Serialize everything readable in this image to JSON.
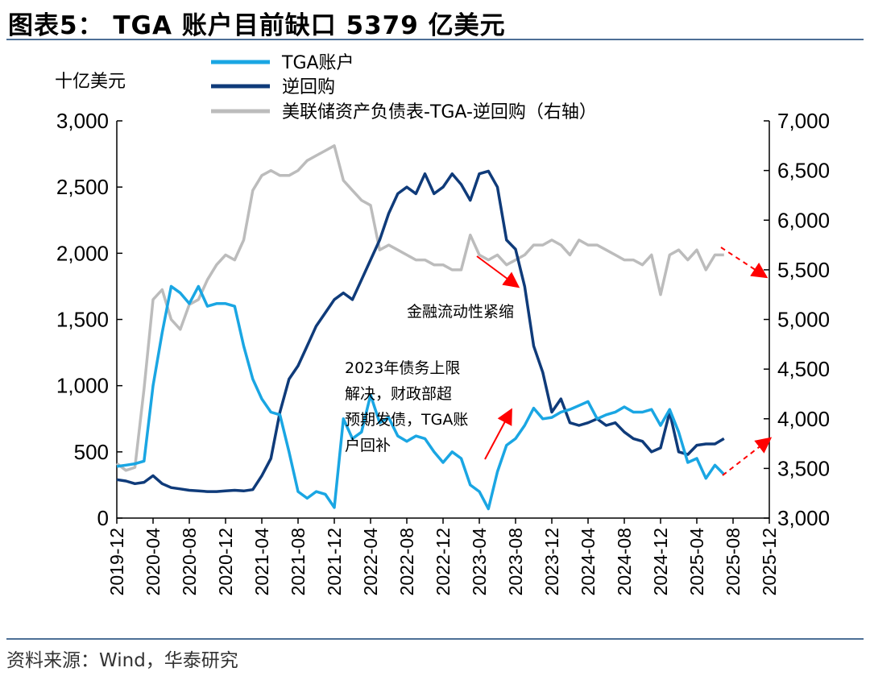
{
  "header": {
    "title": "图表5： TGA 账户目前缺口 5379 亿美元"
  },
  "footer": {
    "source": "资料来源：Wind，华泰研究"
  },
  "chart_data": {
    "type": "line",
    "left_unit": "十亿美元",
    "x_ticks": [
      "2019-12",
      "2020-04",
      "2020-08",
      "2020-12",
      "2021-04",
      "2021-08",
      "2021-12",
      "2022-04",
      "2022-08",
      "2022-12",
      "2023-04",
      "2023-08",
      "2023-12",
      "2024-04",
      "2024-08",
      "2024-12",
      "2025-04",
      "2025-08",
      "2025-12"
    ],
    "y_left": {
      "min": 0,
      "max": 3000,
      "ticks": [
        "0",
        "500",
        "1,000",
        "1,500",
        "2,000",
        "2,500",
        "3,000"
      ]
    },
    "y_right": {
      "min": 3000,
      "max": 7000,
      "ticks": [
        "3,000",
        "3,500",
        "4,000",
        "4,500",
        "5,000",
        "5,500",
        "6,000",
        "6,500",
        "7,000"
      ]
    },
    "grid": false,
    "legend_position": "top",
    "series": [
      {
        "name": "TGA账户",
        "axis": "left",
        "color": "#1aa6e3",
        "points": [
          [
            "2019-12",
            390
          ],
          [
            "2020-01",
            400
          ],
          [
            "2020-02",
            410
          ],
          [
            "2020-03",
            430
          ],
          [
            "2020-04",
            1000
          ],
          [
            "2020-05",
            1400
          ],
          [
            "2020-06",
            1750
          ],
          [
            "2020-07",
            1700
          ],
          [
            "2020-08",
            1620
          ],
          [
            "2020-09",
            1750
          ],
          [
            "2020-10",
            1600
          ],
          [
            "2020-11",
            1620
          ],
          [
            "2020-12",
            1620
          ],
          [
            "2021-01",
            1600
          ],
          [
            "2021-02",
            1300
          ],
          [
            "2021-03",
            1050
          ],
          [
            "2021-04",
            900
          ],
          [
            "2021-05",
            800
          ],
          [
            "2021-06",
            780
          ],
          [
            "2021-07",
            500
          ],
          [
            "2021-08",
            200
          ],
          [
            "2021-09",
            150
          ],
          [
            "2021-10",
            200
          ],
          [
            "2021-11",
            180
          ],
          [
            "2021-12",
            80
          ],
          [
            "2022-01",
            750
          ],
          [
            "2022-02",
            600
          ],
          [
            "2022-03",
            650
          ],
          [
            "2022-04",
            930
          ],
          [
            "2022-05",
            720
          ],
          [
            "2022-06",
            760
          ],
          [
            "2022-07",
            620
          ],
          [
            "2022-08",
            580
          ],
          [
            "2022-09",
            620
          ],
          [
            "2022-10",
            600
          ],
          [
            "2022-11",
            500
          ],
          [
            "2022-12",
            420
          ],
          [
            "2023-01",
            500
          ],
          [
            "2023-02",
            450
          ],
          [
            "2023-03",
            250
          ],
          [
            "2023-04",
            200
          ],
          [
            "2023-05",
            70
          ],
          [
            "2023-06",
            350
          ],
          [
            "2023-07",
            550
          ],
          [
            "2023-08",
            600
          ],
          [
            "2023-09",
            700
          ],
          [
            "2023-10",
            830
          ],
          [
            "2023-11",
            750
          ],
          [
            "2023-12",
            760
          ],
          [
            "2024-01",
            800
          ],
          [
            "2024-02",
            820
          ],
          [
            "2024-03",
            850
          ],
          [
            "2024-04",
            880
          ],
          [
            "2024-05",
            750
          ],
          [
            "2024-06",
            780
          ],
          [
            "2024-07",
            800
          ],
          [
            "2024-08",
            840
          ],
          [
            "2024-09",
            800
          ],
          [
            "2024-10",
            800
          ],
          [
            "2024-11",
            820
          ],
          [
            "2024-12",
            700
          ],
          [
            "2025-01",
            820
          ],
          [
            "2025-02",
            650
          ],
          [
            "2025-03",
            420
          ],
          [
            "2025-04",
            450
          ],
          [
            "2025-05",
            300
          ],
          [
            "2025-06",
            400
          ],
          [
            "2025-07",
            330
          ]
        ]
      },
      {
        "name": "逆回购",
        "axis": "left",
        "color": "#0f3b7a",
        "points": [
          [
            "2019-12",
            290
          ],
          [
            "2020-01",
            280
          ],
          [
            "2020-02",
            260
          ],
          [
            "2020-03",
            270
          ],
          [
            "2020-04",
            320
          ],
          [
            "2020-05",
            260
          ],
          [
            "2020-06",
            230
          ],
          [
            "2020-07",
            220
          ],
          [
            "2020-08",
            210
          ],
          [
            "2020-09",
            205
          ],
          [
            "2020-10",
            200
          ],
          [
            "2020-11",
            200
          ],
          [
            "2020-12",
            205
          ],
          [
            "2021-01",
            210
          ],
          [
            "2021-02",
            205
          ],
          [
            "2021-03",
            215
          ],
          [
            "2021-04",
            320
          ],
          [
            "2021-05",
            450
          ],
          [
            "2021-06",
            800
          ],
          [
            "2021-07",
            1050
          ],
          [
            "2021-08",
            1150
          ],
          [
            "2021-09",
            1300
          ],
          [
            "2021-10",
            1450
          ],
          [
            "2021-11",
            1550
          ],
          [
            "2021-12",
            1650
          ],
          [
            "2022-01",
            1700
          ],
          [
            "2022-02",
            1650
          ],
          [
            "2022-03",
            1800
          ],
          [
            "2022-04",
            1950
          ],
          [
            "2022-05",
            2100
          ],
          [
            "2022-06",
            2300
          ],
          [
            "2022-07",
            2450
          ],
          [
            "2022-08",
            2500
          ],
          [
            "2022-09",
            2450
          ],
          [
            "2022-10",
            2600
          ],
          [
            "2022-11",
            2450
          ],
          [
            "2022-12",
            2500
          ],
          [
            "2023-01",
            2600
          ],
          [
            "2023-02",
            2520
          ],
          [
            "2023-03",
            2400
          ],
          [
            "2023-04",
            2600
          ],
          [
            "2023-05",
            2620
          ],
          [
            "2023-06",
            2500
          ],
          [
            "2023-07",
            2100
          ],
          [
            "2023-08",
            2030
          ],
          [
            "2023-09",
            1750
          ],
          [
            "2023-10",
            1300
          ],
          [
            "2023-11",
            1100
          ],
          [
            "2023-12",
            800
          ],
          [
            "2024-01",
            900
          ],
          [
            "2024-02",
            720
          ],
          [
            "2024-03",
            700
          ],
          [
            "2024-04",
            720
          ],
          [
            "2024-05",
            750
          ],
          [
            "2024-06",
            700
          ],
          [
            "2024-07",
            720
          ],
          [
            "2024-08",
            650
          ],
          [
            "2024-09",
            600
          ],
          [
            "2024-10",
            580
          ],
          [
            "2024-11",
            500
          ],
          [
            "2024-12",
            530
          ],
          [
            "2025-01",
            800
          ],
          [
            "2025-02",
            500
          ],
          [
            "2025-03",
            480
          ],
          [
            "2025-04",
            550
          ],
          [
            "2025-05",
            560
          ],
          [
            "2025-06",
            560
          ],
          [
            "2025-07",
            600
          ]
        ]
      },
      {
        "name": "美联储资产负债表-TGA-逆回购（右轴）",
        "axis": "right",
        "color": "#bcbcbc",
        "points": [
          [
            "2019-12",
            3550
          ],
          [
            "2020-01",
            3480
          ],
          [
            "2020-02",
            3510
          ],
          [
            "2020-03",
            4300
          ],
          [
            "2020-04",
            5200
          ],
          [
            "2020-05",
            5300
          ],
          [
            "2020-06",
            5000
          ],
          [
            "2020-07",
            4900
          ],
          [
            "2020-08",
            5150
          ],
          [
            "2020-09",
            5200
          ],
          [
            "2020-10",
            5400
          ],
          [
            "2020-11",
            5550
          ],
          [
            "2020-12",
            5650
          ],
          [
            "2021-01",
            5600
          ],
          [
            "2021-02",
            5800
          ],
          [
            "2021-03",
            6300
          ],
          [
            "2021-04",
            6450
          ],
          [
            "2021-05",
            6500
          ],
          [
            "2021-06",
            6450
          ],
          [
            "2021-07",
            6450
          ],
          [
            "2021-08",
            6500
          ],
          [
            "2021-09",
            6600
          ],
          [
            "2021-10",
            6650
          ],
          [
            "2021-11",
            6700
          ],
          [
            "2021-12",
            6750
          ],
          [
            "2022-01",
            6400
          ],
          [
            "2022-02",
            6300
          ],
          [
            "2022-03",
            6200
          ],
          [
            "2022-04",
            6150
          ],
          [
            "2022-05",
            5700
          ],
          [
            "2022-06",
            5750
          ],
          [
            "2022-07",
            5700
          ],
          [
            "2022-08",
            5650
          ],
          [
            "2022-09",
            5600
          ],
          [
            "2022-10",
            5600
          ],
          [
            "2022-11",
            5550
          ],
          [
            "2022-12",
            5550
          ],
          [
            "2023-01",
            5500
          ],
          [
            "2023-02",
            5500
          ],
          [
            "2023-03",
            5850
          ],
          [
            "2023-04",
            5650
          ],
          [
            "2023-05",
            5600
          ],
          [
            "2023-06",
            5650
          ],
          [
            "2023-07",
            5550
          ],
          [
            "2023-08",
            5600
          ],
          [
            "2023-09",
            5650
          ],
          [
            "2023-10",
            5750
          ],
          [
            "2023-11",
            5750
          ],
          [
            "2023-12",
            5800
          ],
          [
            "2024-01",
            5750
          ],
          [
            "2024-02",
            5650
          ],
          [
            "2024-03",
            5800
          ],
          [
            "2024-04",
            5750
          ],
          [
            "2024-05",
            5750
          ],
          [
            "2024-06",
            5700
          ],
          [
            "2024-07",
            5650
          ],
          [
            "2024-08",
            5600
          ],
          [
            "2024-09",
            5600
          ],
          [
            "2024-10",
            5550
          ],
          [
            "2024-11",
            5650
          ],
          [
            "2024-12",
            5250
          ],
          [
            "2025-01",
            5650
          ],
          [
            "2025-02",
            5700
          ],
          [
            "2025-03",
            5600
          ],
          [
            "2025-04",
            5700
          ],
          [
            "2025-05",
            5500
          ],
          [
            "2025-06",
            5650
          ],
          [
            "2025-07",
            5650
          ]
        ]
      }
    ],
    "annotations": [
      {
        "text": "金融流动性紧缩"
      },
      {
        "lines": [
          "2023年债务上限",
          "解决，财政部超",
          "预期发债，TGA账",
          "户回补"
        ]
      }
    ],
    "projection_arrows": {
      "color": "#ff0000",
      "style": "dashed"
    }
  }
}
